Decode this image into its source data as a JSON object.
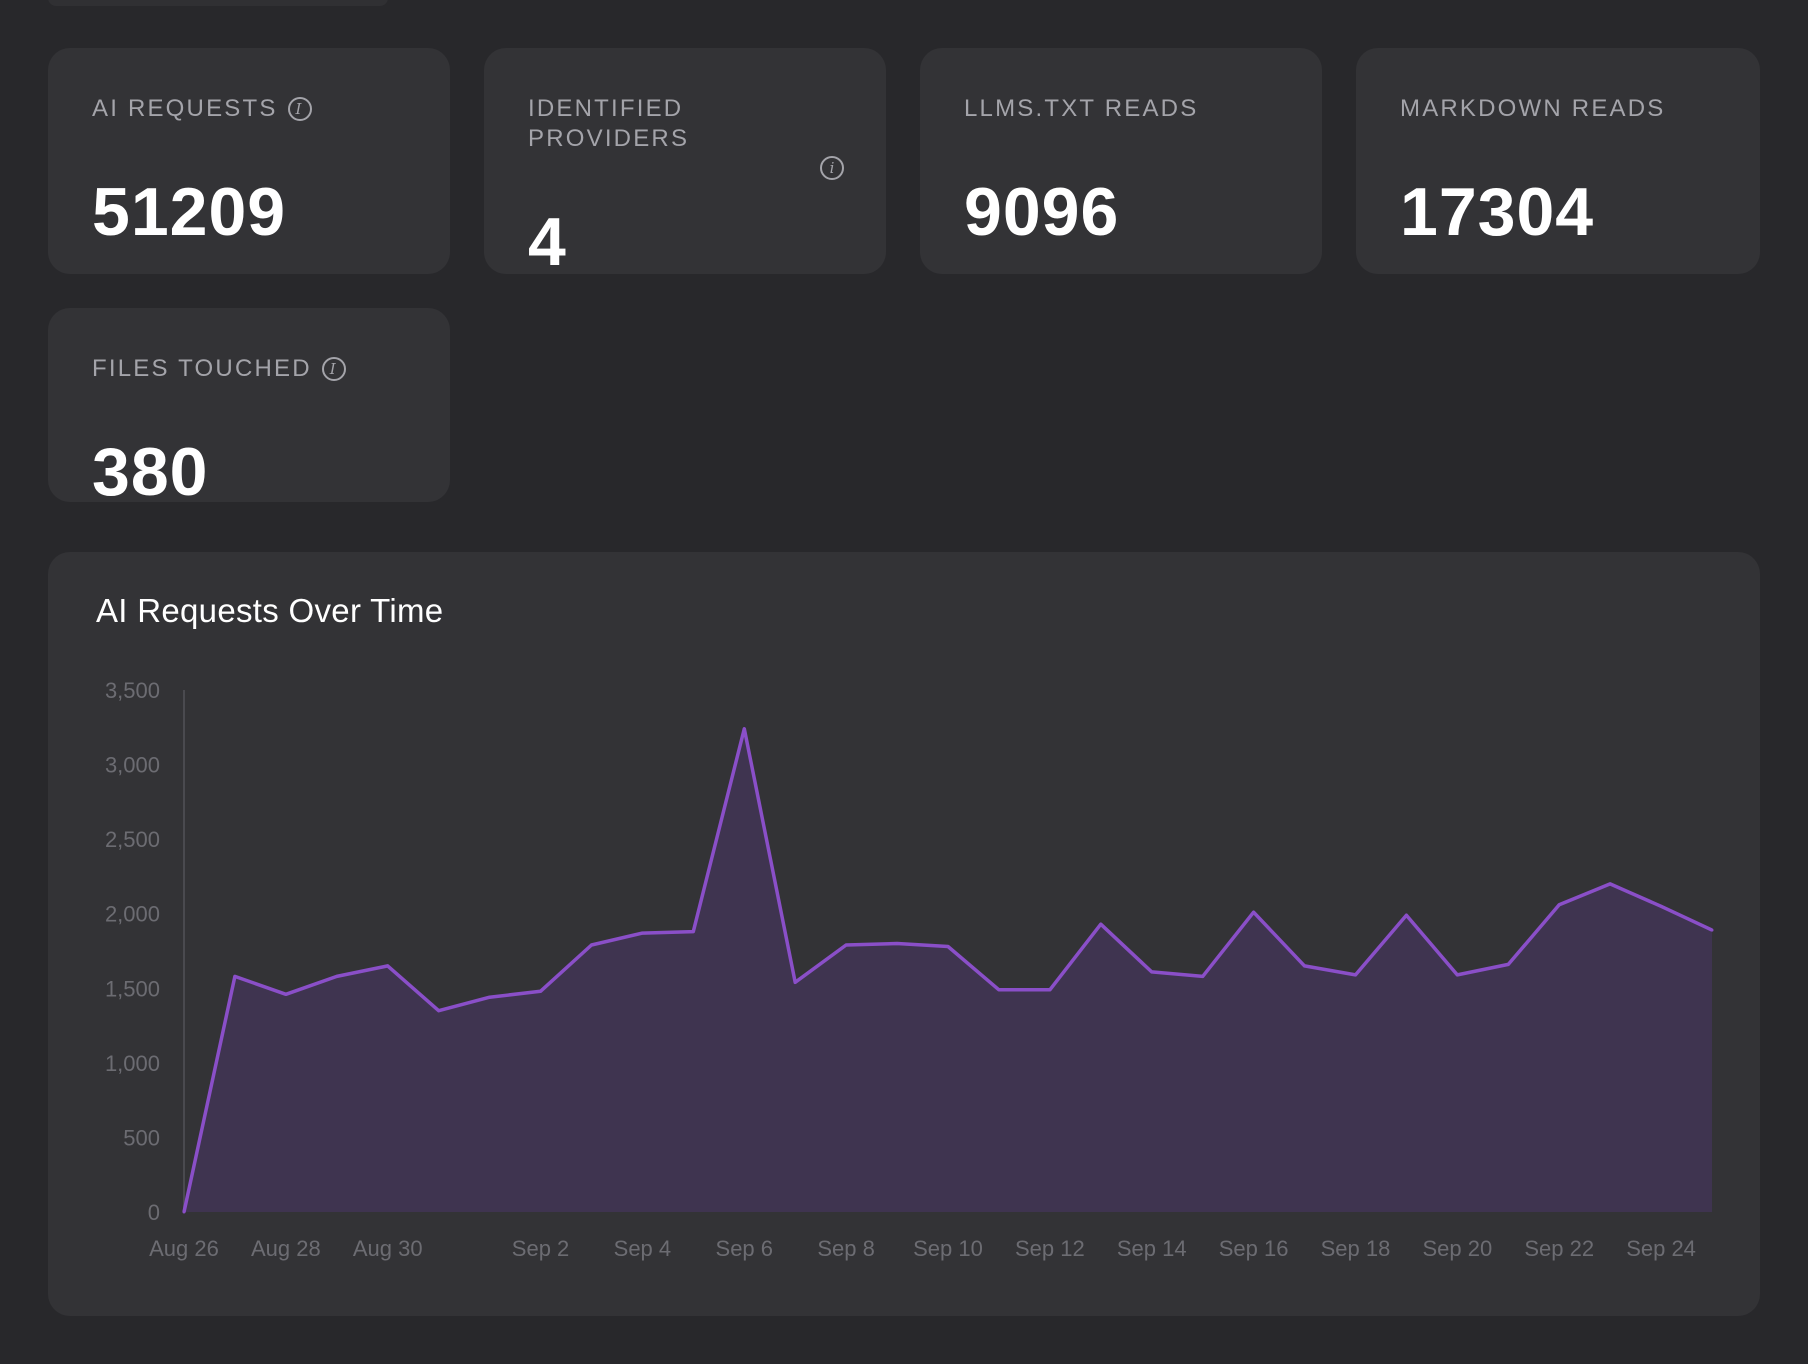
{
  "stats": [
    {
      "label": "AI REQUESTS",
      "value": "51209",
      "has_info": true
    },
    {
      "label": "IDENTIFIED PROVIDERS",
      "value": "4",
      "has_info": true
    },
    {
      "label": "LLMS.TXT READS",
      "value": "9096",
      "has_info": false
    },
    {
      "label": "MARKDOWN READS",
      "value": "17304",
      "has_info": false
    },
    {
      "label": "FILES TOUCHED",
      "value": "380",
      "has_info": true
    }
  ],
  "icons": {
    "info": "info-icon"
  },
  "colors": {
    "line": "#8a4fc8",
    "fill": "#3f3450",
    "card": "#333336",
    "background": "#28282b"
  },
  "chart_data": {
    "type": "area",
    "title": "AI Requests Over Time",
    "xlabel": "",
    "ylabel": "",
    "ylim": [
      0,
      3500
    ],
    "yticks": [
      "0",
      "500",
      "1,000",
      "1,500",
      "2,000",
      "2,500",
      "3,000",
      "3,500"
    ],
    "ytick_values": [
      0,
      500,
      1000,
      1500,
      2000,
      2500,
      3000,
      3500
    ],
    "xtick_labels": [
      "Aug 26",
      "Aug 28",
      "Aug 30",
      "Sep 2",
      "Sep 4",
      "Sep 6",
      "Sep 8",
      "Sep 10",
      "Sep 12",
      "Sep 14",
      "Sep 16",
      "Sep 18",
      "Sep 20",
      "Sep 22",
      "Sep 24"
    ],
    "x": [
      "Aug 26",
      "Aug 27",
      "Aug 28",
      "Aug 29",
      "Aug 30",
      "Aug 31",
      "Sep 1",
      "Sep 2",
      "Sep 3",
      "Sep 4",
      "Sep 5",
      "Sep 6",
      "Sep 7",
      "Sep 8",
      "Sep 9",
      "Sep 10",
      "Sep 11",
      "Sep 12",
      "Sep 13",
      "Sep 14",
      "Sep 15",
      "Sep 16",
      "Sep 17",
      "Sep 18",
      "Sep 19",
      "Sep 20",
      "Sep 21",
      "Sep 22",
      "Sep 23",
      "Sep 24",
      "Sep 25"
    ],
    "series": [
      {
        "values": [
          0,
          1580,
          1460,
          1580,
          1650,
          1350,
          1440,
          1480,
          1790,
          1870,
          1880,
          3240,
          1540,
          1790,
          1800,
          1780,
          1490,
          1490,
          1930,
          1610,
          1580,
          2010,
          1650,
          1590,
          1990,
          1590,
          1660,
          2060,
          2200,
          2050,
          1890
        ]
      }
    ],
    "grid": false,
    "legend": "none"
  }
}
